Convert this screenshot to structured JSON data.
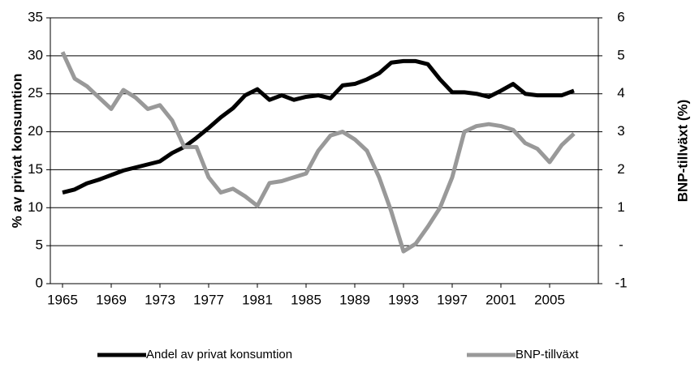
{
  "chart_data": {
    "type": "line",
    "ylabel": "% av privat konsumtion",
    "y2label": "BNP-tillväxt (%)",
    "x": [
      1965,
      1966,
      1967,
      1968,
      1969,
      1970,
      1971,
      1972,
      1973,
      1974,
      1975,
      1976,
      1977,
      1978,
      1979,
      1980,
      1981,
      1982,
      1983,
      1984,
      1985,
      1986,
      1987,
      1988,
      1989,
      1990,
      1991,
      1992,
      1993,
      1994,
      1995,
      1996,
      1997,
      1998,
      1999,
      2000,
      2001,
      2002,
      2003,
      2004,
      2005,
      2006,
      2007
    ],
    "xlim": [
      1964,
      2009
    ],
    "xticks": [
      1965,
      1969,
      1973,
      1977,
      1981,
      1985,
      1989,
      1993,
      1997,
      2001,
      2005
    ],
    "ylim": [
      0,
      35
    ],
    "yticks": [
      0,
      5,
      10,
      15,
      20,
      25,
      30,
      35
    ],
    "y2lim": [
      -1,
      6
    ],
    "y2ticks": [
      -1,
      {
        "value": 0,
        "label": "-"
      },
      1,
      2,
      3,
      4,
      5,
      6
    ],
    "grid": true,
    "legend": "bottom",
    "series": [
      {
        "name": "Andel av privat konsumtion",
        "color": "#000000",
        "values": [
          12.0,
          12.4,
          13.2,
          13.7,
          14.3,
          14.9,
          15.3,
          15.7,
          16.1,
          17.2,
          18.0,
          19.2,
          20.5,
          21.9,
          23.1,
          24.8,
          25.6,
          24.2,
          24.8,
          24.2,
          24.6,
          24.8,
          24.4,
          26.1,
          26.3,
          26.9,
          27.7,
          29.1,
          29.3,
          29.3,
          28.9,
          26.9,
          25.2,
          25.2,
          25.0,
          24.6,
          25.4,
          26.3,
          25.0,
          24.8,
          24.8,
          24.8,
          25.4
        ]
      },
      {
        "name": "BNP-tillväxt",
        "color": "#999999",
        "axis": "y2",
        "values": [
          5.1,
          4.4,
          4.2,
          3.9,
          3.6,
          4.1,
          3.9,
          3.6,
          3.7,
          3.3,
          2.6,
          2.6,
          1.8,
          1.4,
          1.5,
          1.3,
          1.05,
          1.65,
          1.7,
          1.8,
          1.9,
          2.5,
          2.9,
          3.0,
          2.8,
          2.5,
          1.8,
          0.9,
          -0.15,
          0.05,
          0.5,
          1.0,
          1.8,
          3.0,
          3.15,
          3.2,
          3.15,
          3.05,
          2.7,
          2.55,
          2.2,
          2.65,
          2.95
        ]
      }
    ]
  }
}
